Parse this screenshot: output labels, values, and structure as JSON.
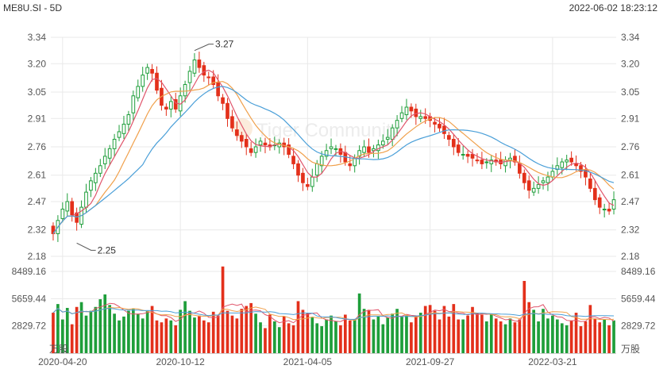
{
  "header": {
    "title": "ME8U.SI - 5D",
    "timestamp": "2022-06-02 18:23:12"
  },
  "watermark": {
    "text": "Tiger Community"
  },
  "colors": {
    "up": "#1e9e3a",
    "down": "#e3301b",
    "grid": "#e9e9e9",
    "ma_short": "#e0556b",
    "ma_mid": "#f0a04b",
    "ma_long": "#4a9fd8"
  },
  "chart_data": [
    {
      "type": "candlestick",
      "ylim": [
        2.18,
        3.34
      ],
      "yticks": [
        "3.34",
        "3.20",
        "3.05",
        "2.91",
        "2.76",
        "2.61",
        "2.47",
        "2.32",
        "2.18"
      ],
      "xticks": [
        "2020-04-20",
        "2020-10-12",
        "2021-04-05",
        "2021-09-27",
        "2022-03-21"
      ],
      "annotations": [
        {
          "label": "3.27",
          "at_index": 30,
          "value": 3.27,
          "kind": "high"
        },
        {
          "label": "2.25",
          "at_index": 5,
          "value": 2.25,
          "kind": "low"
        }
      ],
      "close": [
        2.3,
        2.37,
        2.43,
        2.47,
        2.4,
        2.36,
        2.44,
        2.52,
        2.58,
        2.62,
        2.66,
        2.71,
        2.75,
        2.8,
        2.84,
        2.88,
        2.93,
        3.03,
        3.08,
        3.14,
        3.18,
        3.15,
        3.06,
        2.98,
        2.96,
        3.0,
        2.96,
        3.03,
        3.09,
        3.16,
        3.22,
        3.18,
        3.14,
        3.13,
        3.09,
        3.03,
        2.99,
        2.91,
        2.86,
        2.82,
        2.79,
        2.76,
        2.73,
        2.76,
        2.79,
        2.77,
        2.76,
        2.77,
        2.78,
        2.76,
        2.72,
        2.67,
        2.61,
        2.57,
        2.55,
        2.6,
        2.67,
        2.71,
        2.74,
        2.76,
        2.75,
        2.72,
        2.68,
        2.66,
        2.7,
        2.74,
        2.76,
        2.73,
        2.75,
        2.77,
        2.79,
        2.81,
        2.86,
        2.9,
        2.94,
        2.97,
        2.95,
        2.92,
        2.92,
        2.91,
        2.9,
        2.88,
        2.86,
        2.83,
        2.8,
        2.76,
        2.73,
        2.72,
        2.71,
        2.7,
        2.69,
        2.67,
        2.68,
        2.69,
        2.68,
        2.67,
        2.69,
        2.7,
        2.68,
        2.62,
        2.57,
        2.53,
        2.54,
        2.56,
        2.58,
        2.6,
        2.63,
        2.66,
        2.68,
        2.69,
        2.68,
        2.66,
        2.63,
        2.6,
        2.54,
        2.48,
        2.44,
        2.43,
        2.42,
        2.48
      ]
    },
    {
      "type": "bar",
      "unit": "万股",
      "ylim": [
        0,
        8489.16
      ],
      "yticks": [
        "8489.16",
        "5659.44",
        "2829.72"
      ],
      "values": [
        4200,
        5100,
        3500,
        4700,
        3000,
        4800,
        5300,
        3900,
        4400,
        4800,
        5600,
        6100,
        5000,
        4100,
        3400,
        3800,
        4400,
        4600,
        4100,
        3600,
        4400,
        4900,
        3400,
        3200,
        3600,
        3400,
        2900,
        4500,
        5400,
        4400,
        3700,
        3900,
        3400,
        3200,
        4300,
        3900,
        9000,
        4400,
        3900,
        3600,
        4600,
        4900,
        5200,
        4100,
        3200,
        2600,
        4000,
        3300,
        2700,
        3800,
        3100,
        2900,
        5400,
        4500,
        4200,
        3700,
        3100,
        2800,
        3500,
        3900,
        3300,
        2900,
        4000,
        3400,
        3500,
        6200,
        4600,
        4500,
        3500,
        3800,
        3000,
        3700,
        4100,
        4600,
        3800,
        3900,
        3200,
        3900,
        4200,
        4900,
        5000,
        4400,
        3500,
        4900,
        3800,
        5100,
        3500,
        3500,
        3900,
        4800,
        4200,
        4000,
        3300,
        4100,
        3600,
        3300,
        3000,
        3600,
        3200,
        3500,
        7500,
        5300,
        4500,
        3300,
        4600,
        3600,
        3900,
        3500,
        3100,
        2900,
        3400,
        4200,
        2800,
        3300,
        5000,
        3600,
        3200,
        3500,
        2900,
        3400
      ],
      "ma_lines": [
        "ma_short",
        "ma_mid",
        "ma_long"
      ]
    }
  ]
}
